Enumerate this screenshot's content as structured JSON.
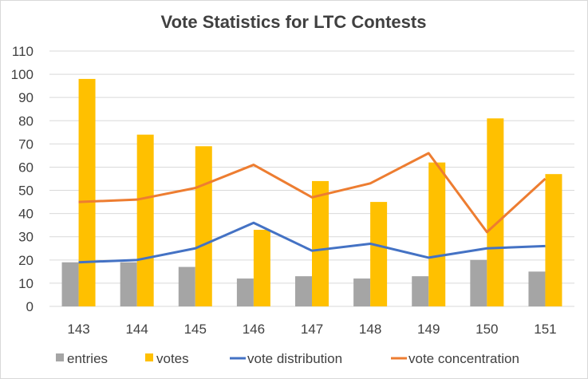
{
  "chart_data": {
    "type": "bar",
    "title": "Vote Statistics for LTC Contests",
    "xlabel": "",
    "ylabel": "",
    "categories": [
      "143",
      "144",
      "145",
      "146",
      "147",
      "148",
      "149",
      "150",
      "151"
    ],
    "ylim": [
      0,
      110
    ],
    "yticks": [
      0,
      10,
      20,
      30,
      40,
      50,
      60,
      70,
      80,
      90,
      100,
      110
    ],
    "grid": true,
    "legend_position": "bottom",
    "series": [
      {
        "name": "entries",
        "kind": "bar",
        "color": "#a5a5a5",
        "values": [
          19,
          19,
          17,
          12,
          13,
          12,
          13,
          20,
          15
        ]
      },
      {
        "name": "votes",
        "kind": "bar",
        "color": "#ffc000",
        "values": [
          98,
          74,
          69,
          33,
          54,
          45,
          62,
          81,
          57
        ]
      },
      {
        "name": "vote distribution",
        "kind": "line",
        "color": "#4472c4",
        "values": [
          19,
          20,
          25,
          36,
          24,
          27,
          21,
          25,
          26
        ]
      },
      {
        "name": "vote concentration",
        "kind": "line",
        "color": "#ed7d31",
        "values": [
          45,
          46,
          51,
          61,
          47,
          53,
          66,
          32,
          55
        ]
      }
    ]
  }
}
